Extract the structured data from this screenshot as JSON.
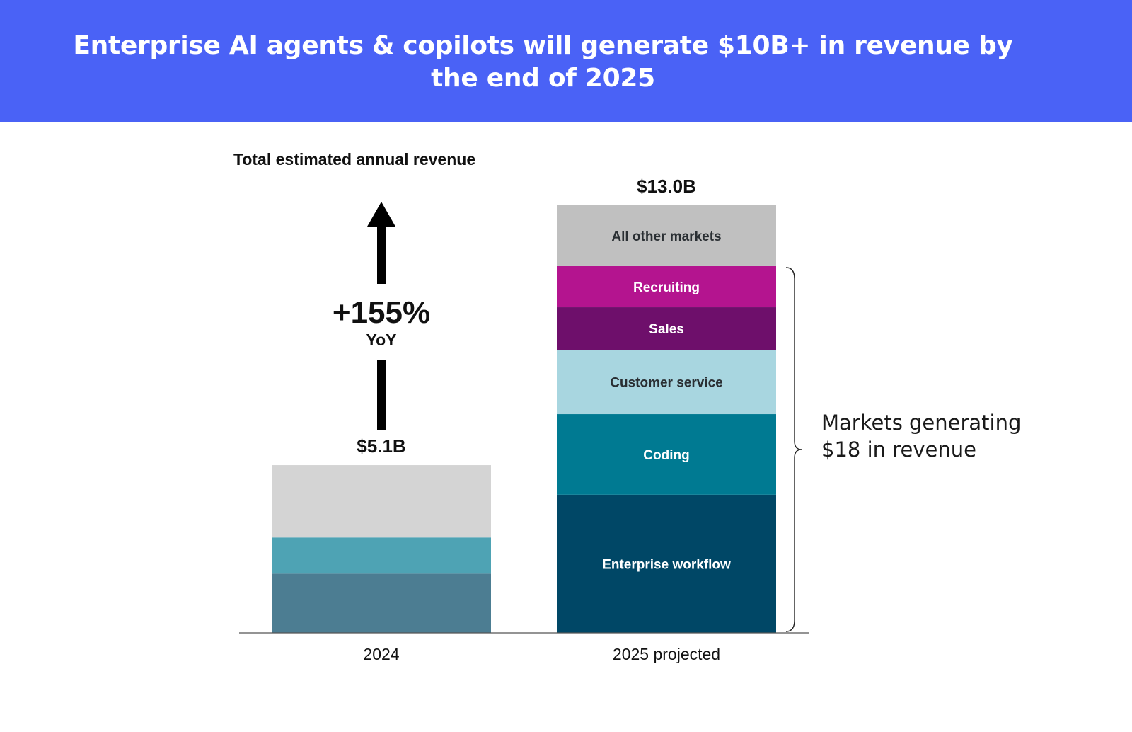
{
  "header": {
    "title": "Enterprise AI agents & copilots will generate $10B+ in revenue by the end of 2025",
    "background_color": "#4a62f6"
  },
  "chart_data": {
    "type": "bar",
    "stacked": true,
    "title": "Enterprise AI agents & copilots will generate $10B+ in revenue by the end of 2025",
    "subtitle": "Total estimated annual revenue",
    "xlabel": "",
    "ylabel": "",
    "grid": false,
    "legend": "none",
    "ylim": [
      0,
      13.0
    ],
    "categories": [
      "2024",
      "2025 projected"
    ],
    "totals": [
      {
        "value": 5.1,
        "label": "$5.1B"
      },
      {
        "value": 13.0,
        "label": "$13.0B"
      }
    ],
    "bars": [
      {
        "category": "2024",
        "segments": [
          {
            "name": "",
            "value": 1.8,
            "color": "#4c7d92",
            "label": ""
          },
          {
            "name": "",
            "value": 1.1,
            "color": "#4ea3b4",
            "label": ""
          },
          {
            "name": "",
            "value": 2.2,
            "color": "#d4d4d4",
            "label": ""
          }
        ]
      },
      {
        "category": "2025 projected",
        "segments": [
          {
            "name": "Enterprise workflow",
            "value": 4.2,
            "color": "#004766",
            "label": "Enterprise workflow",
            "text_color": "#ffffff"
          },
          {
            "name": "Coding",
            "value": 2.45,
            "color": "#007a92",
            "label": "Coding",
            "text_color": "#ffffff"
          },
          {
            "name": "Customer service",
            "value": 1.95,
            "color": "#a8d6e0",
            "label": "Customer service",
            "text_color": "#2a2f33"
          },
          {
            "name": "Sales",
            "value": 1.3,
            "color": "#6e0f6b",
            "label": "Sales",
            "text_color": "#ffffff"
          },
          {
            "name": "Recruiting",
            "value": 1.25,
            "color": "#b4148f",
            "label": "Recruiting",
            "text_color": "#ffffff"
          },
          {
            "name": "All other markets",
            "value": 1.85,
            "color": "#c0c0c0",
            "label": "All other markets",
            "text_color": "#2a2f33"
          }
        ]
      }
    ],
    "annotations": {
      "growth": {
        "value": "+155%",
        "sublabel": "YoY"
      },
      "bracket": {
        "text": "Markets generating $18 in revenue"
      }
    }
  }
}
